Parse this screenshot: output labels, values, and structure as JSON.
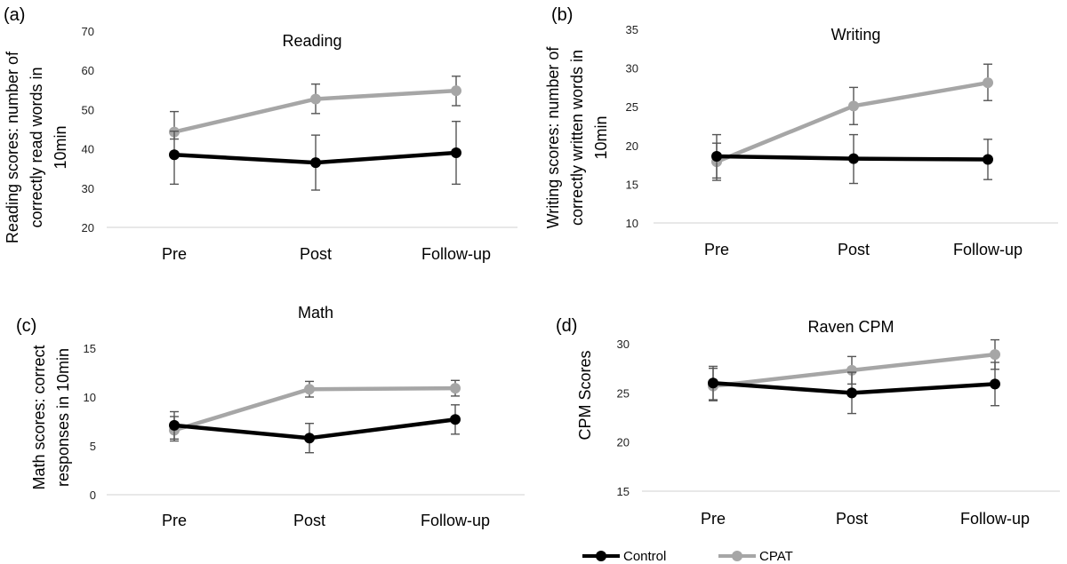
{
  "chart_data": [
    {
      "type": "line",
      "panel_label": "(a)",
      "title": "Reading",
      "ylabel": [
        "Reading scores: number of",
        "correctly read words in",
        "10min"
      ],
      "categories": [
        "Pre",
        "Post",
        "Follow-up"
      ],
      "ylim": [
        20,
        70
      ],
      "yticks": [
        20,
        30,
        40,
        50,
        60,
        70
      ],
      "grid": false,
      "series": [
        {
          "name": "Control",
          "color": "#000000",
          "values": [
            38.5,
            36.5,
            39.0
          ],
          "err_low": [
            31.0,
            29.5,
            31.0
          ],
          "err_high": [
            44.5,
            43.5,
            47.0
          ]
        },
        {
          "name": "CPAT",
          "color": "#a6a6a6",
          "values": [
            44.3,
            52.7,
            54.8
          ],
          "err_low": [
            42.5,
            49.0,
            51.0
          ],
          "err_high": [
            49.5,
            56.5,
            58.5
          ]
        }
      ]
    },
    {
      "type": "line",
      "panel_label": "(b)",
      "title": "Writing",
      "ylabel": [
        "Writing scores: number of",
        "correctly written words in",
        "10min"
      ],
      "categories": [
        "Pre",
        "Post",
        "Follow-up"
      ],
      "ylim": [
        10,
        35
      ],
      "yticks": [
        10,
        15,
        20,
        25,
        30,
        35
      ],
      "grid": false,
      "series": [
        {
          "name": "Control",
          "color": "#000000",
          "values": [
            18.6,
            18.3,
            18.2
          ],
          "err_low": [
            15.8,
            15.1,
            15.6
          ],
          "err_high": [
            21.4,
            21.4,
            20.8
          ]
        },
        {
          "name": "CPAT",
          "color": "#a6a6a6",
          "values": [
            17.9,
            25.1,
            28.1
          ],
          "err_low": [
            15.5,
            22.7,
            25.8
          ],
          "err_high": [
            20.3,
            27.5,
            30.5
          ]
        }
      ]
    },
    {
      "type": "line",
      "panel_label": "(c)",
      "title": "Math",
      "ylabel": [
        "Math scores: correct",
        "responses in 10min"
      ],
      "categories": [
        "Pre",
        "Post",
        "Follow-up"
      ],
      "ylim": [
        0,
        15
      ],
      "yticks": [
        0,
        5,
        10,
        15
      ],
      "grid": false,
      "series": [
        {
          "name": "Control",
          "color": "#000000",
          "values": [
            7.1,
            5.8,
            7.7
          ],
          "err_low": [
            5.7,
            4.3,
            6.2
          ],
          "err_high": [
            8.5,
            7.3,
            9.2
          ]
        },
        {
          "name": "CPAT",
          "color": "#a6a6a6",
          "values": [
            6.6,
            10.8,
            10.9
          ],
          "err_low": [
            5.5,
            10.0,
            10.1
          ],
          "err_high": [
            8.0,
            11.6,
            11.7
          ]
        }
      ]
    },
    {
      "type": "line",
      "panel_label": "(d)",
      "title": "Raven CPM",
      "ylabel": [
        "CPM Scores"
      ],
      "categories": [
        "Pre",
        "Post",
        "Follow-up"
      ],
      "ylim": [
        15,
        30
      ],
      "yticks": [
        15,
        20,
        25,
        30
      ],
      "grid": false,
      "series": [
        {
          "name": "Control",
          "color": "#000000",
          "values": [
            26.0,
            25.0,
            25.9
          ],
          "err_low": [
            24.3,
            22.9,
            23.7
          ],
          "err_high": [
            27.7,
            27.1,
            28.1
          ]
        },
        {
          "name": "CPAT",
          "color": "#a6a6a6",
          "values": [
            25.7,
            27.3,
            28.9
          ],
          "err_low": [
            24.2,
            25.9,
            27.4
          ],
          "err_high": [
            27.5,
            28.7,
            30.4
          ]
        }
      ]
    }
  ],
  "legend": {
    "placement": "bottom-center",
    "items": [
      {
        "label": "Control",
        "color": "#000000"
      },
      {
        "label": "CPAT",
        "color": "#a6a6a6"
      }
    ]
  }
}
